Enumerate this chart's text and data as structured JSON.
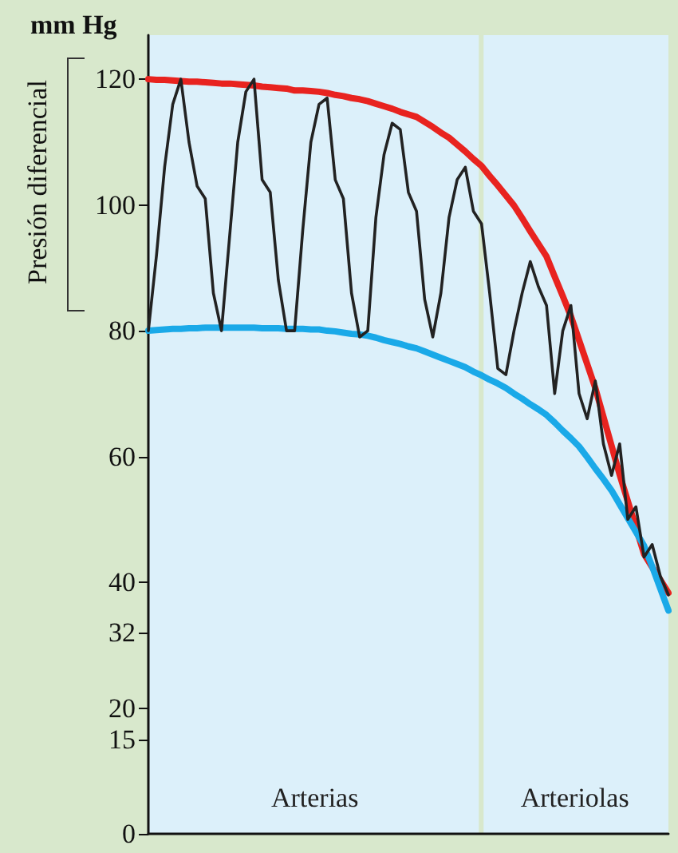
{
  "chart_data": {
    "type": "line",
    "ylabel": "mm Hg",
    "categories": [
      null,
      null,
      null,
      null,
      null,
      null,
      null,
      null,
      null,
      null,
      null,
      null,
      null,
      null,
      null,
      null,
      null,
      null,
      null,
      null,
      null,
      null,
      null,
      null,
      null,
      null,
      null,
      null,
      null,
      null,
      null,
      null,
      null,
      null,
      null,
      null,
      null,
      null,
      null,
      null,
      null,
      null,
      null,
      null,
      null,
      null,
      null,
      null,
      null,
      null,
      null,
      null,
      null,
      null,
      null,
      null,
      null,
      null,
      null,
      null,
      null,
      null,
      null,
      null,
      null
    ],
    "series": [
      {
        "color": "#e8231f",
        "values": [
          120,
          119.9,
          119.9,
          119.8,
          119.7,
          119.6,
          119.6,
          119.5,
          119.4,
          119.3,
          119.3,
          119.2,
          119.1,
          119,
          118.8,
          118.7,
          118.6,
          118.5,
          118.2,
          118.2,
          118.1,
          118,
          117.8,
          117.5,
          117.3,
          117,
          116.8,
          116.5,
          116.1,
          115.7,
          115.3,
          114.8,
          114.4,
          114,
          113.2,
          112.4,
          111.5,
          110.7,
          109.6,
          108.5,
          107.3,
          106.2,
          104.6,
          103.1,
          101.5,
          99.9,
          97.9,
          95.8,
          93.8,
          91.8,
          88.6,
          85.5,
          82.3,
          78.5,
          74.7,
          70.9,
          66.3,
          61.7,
          57.1,
          52.9,
          48.7,
          44.5,
          42.4,
          40.4,
          38.3
        ]
      },
      {
        "color": "#1aa9e8",
        "values": [
          80,
          80.1,
          80.2,
          80.3,
          80.3,
          80.4,
          80.4,
          80.5,
          80.5,
          80.5,
          80.5,
          80.5,
          80.5,
          80.5,
          80.4,
          80.4,
          80.4,
          80.3,
          80.3,
          80.3,
          80.2,
          80.2,
          80,
          79.9,
          79.7,
          79.5,
          79.4,
          79.2,
          78.9,
          78.5,
          78.2,
          77.9,
          77.5,
          77.2,
          76.7,
          76.2,
          75.7,
          75.2,
          74.7,
          74.2,
          73.5,
          72.9,
          72.2,
          71.6,
          70.9,
          70,
          69.2,
          68.3,
          67.5,
          66.6,
          65.4,
          64.1,
          62.9,
          61.6,
          59.9,
          58.1,
          56.4,
          54.6,
          52.4,
          50.2,
          48,
          45.8,
          42.5,
          39,
          35.5
        ]
      },
      {
        "color": "#222222",
        "values": [
          80,
          92,
          106,
          116,
          120,
          110,
          103,
          101,
          86,
          80,
          95,
          110,
          118,
          120,
          104,
          102,
          88,
          80,
          80,
          96,
          110,
          116,
          117,
          104,
          101,
          86,
          79,
          80,
          98,
          108,
          113,
          112,
          102,
          99,
          85,
          79,
          86,
          98,
          104,
          106,
          99,
          97,
          86,
          74,
          73,
          80,
          86,
          91,
          87,
          84,
          70,
          80,
          84,
          70,
          66,
          72,
          62,
          57,
          62,
          50,
          52,
          44,
          46,
          41,
          38
        ]
      }
    ],
    "ylim": [
      0,
      127
    ],
    "yticks": [
      0,
      15,
      20,
      32,
      40,
      60,
      80,
      100,
      120
    ],
    "annotations": [
      "Presión diferencial",
      "Arterias",
      "Arteriolas"
    ],
    "tick_labels": "y",
    "line_style": "solid"
  }
}
